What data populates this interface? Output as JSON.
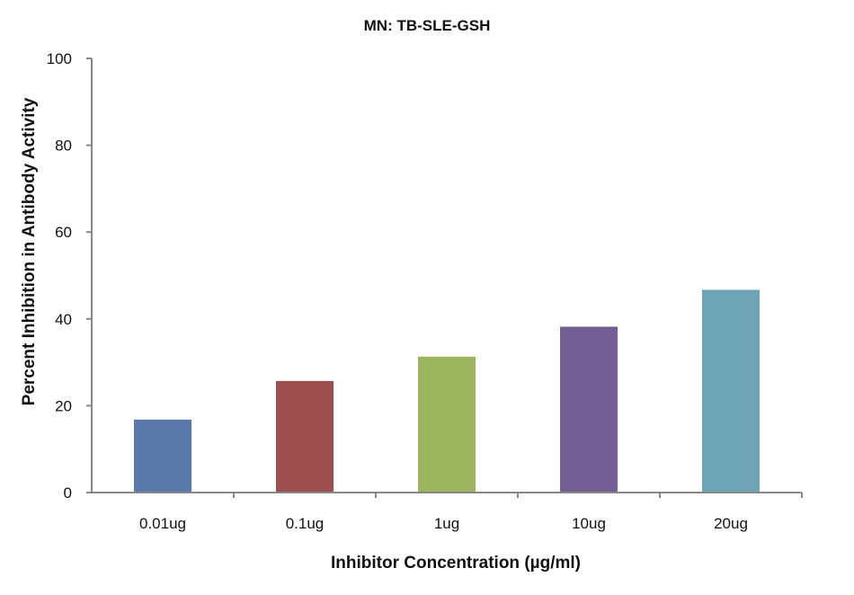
{
  "chart_data": {
    "type": "bar",
    "title": "MN: TB-SLE-GSH",
    "xlabel": "Inhibitor Concentration (µg/ml)",
    "ylabel": "Percent Inhibition in Antibody Activity",
    "categories": [
      "0.01ug",
      "0.1ug",
      "1ug",
      "10ug",
      "20ug"
    ],
    "values": [
      16.8,
      25.7,
      31.3,
      38.2,
      46.7
    ],
    "colors": [
      "#5b78ab",
      "#9c4f4e",
      "#9bb45d",
      "#735f93",
      "#6ea5b6"
    ],
    "ylim": [
      0,
      100
    ],
    "yticks": [
      0,
      20,
      40,
      60,
      80,
      100
    ],
    "grid": false,
    "legend": "none"
  }
}
